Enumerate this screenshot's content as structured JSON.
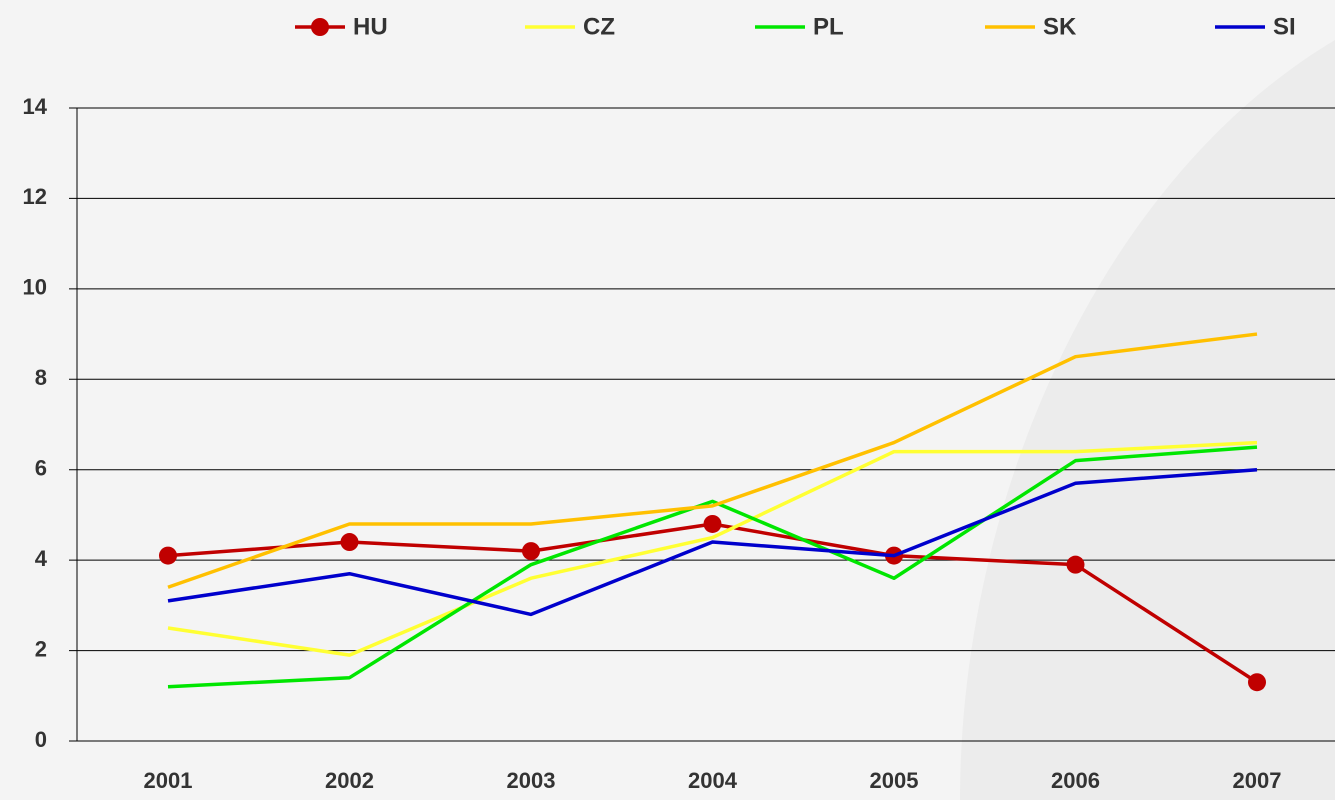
{
  "chart_data": {
    "type": "line",
    "categories": [
      "2001",
      "2002",
      "2003",
      "2004",
      "2005",
      "2006",
      "2007"
    ],
    "series": [
      {
        "name": "HU",
        "color": "#c00000",
        "marker": true,
        "values": [
          4.1,
          4.4,
          4.2,
          4.8,
          4.1,
          3.9,
          1.3
        ]
      },
      {
        "name": "CZ",
        "color": "#ffff33",
        "marker": false,
        "values": [
          2.5,
          1.9,
          3.6,
          4.5,
          6.4,
          6.4,
          6.6
        ]
      },
      {
        "name": "PL",
        "color": "#00e600",
        "marker": false,
        "values": [
          1.2,
          1.4,
          3.9,
          5.3,
          3.6,
          6.2,
          6.5
        ]
      },
      {
        "name": "SK",
        "color": "#ffc000",
        "marker": false,
        "values": [
          3.4,
          4.8,
          4.8,
          5.2,
          6.6,
          8.5,
          9.0
        ]
      },
      {
        "name": "SI",
        "color": "#0000cc",
        "marker": false,
        "values": [
          3.1,
          3.7,
          2.8,
          4.4,
          4.1,
          5.7,
          6.0
        ]
      }
    ],
    "ylim": [
      0,
      14
    ],
    "yticks": [
      0,
      2,
      4,
      6,
      8,
      10,
      12,
      14
    ],
    "grid": true,
    "legend": "top"
  }
}
